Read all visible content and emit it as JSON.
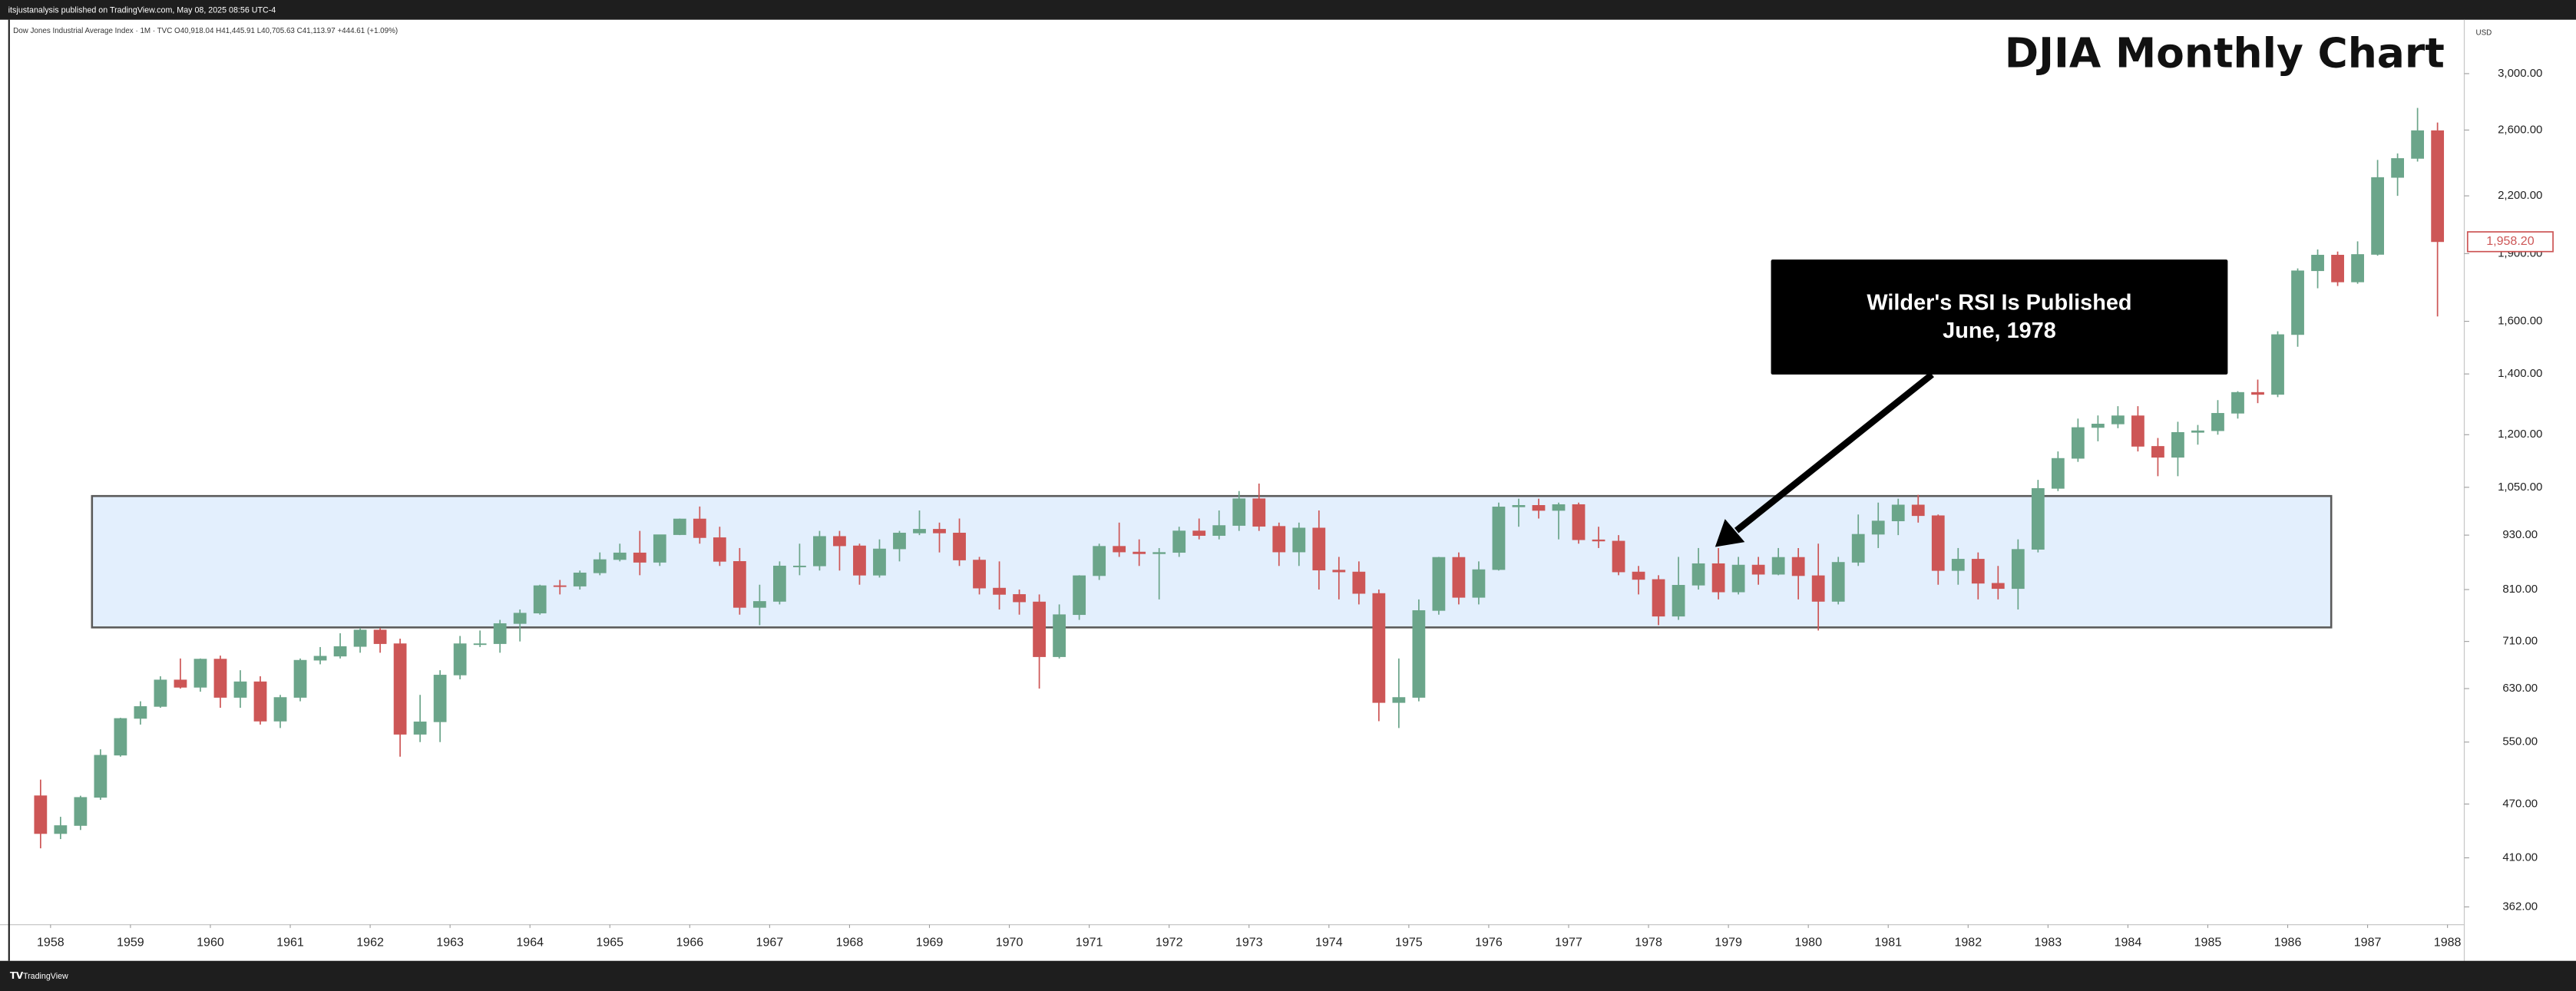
{
  "header": {
    "publisher": "itsjustanalysis published on TradingView.com, May 08, 2025 08:56 UTC-4",
    "symbol_info": "Dow Jones Industrial Average Index · 1M · TVC  O40,918.04  H41,445.91  L40,705.63  C41,113.97  +444.61 (+1.09%)"
  },
  "footer": {
    "brand": "TradingView"
  },
  "chart_data": {
    "type": "candlestick",
    "title": "DJIA Monthly Chart",
    "currency": "USD",
    "annotation": [
      "Wilder's RSI Is Published",
      "June, 1978"
    ],
    "log_scale": true,
    "grid": false,
    "up_color": "#6ba58a",
    "down_color": "#cd5656",
    "last_price": {
      "value": 1958.2,
      "label": "1,958.20"
    },
    "xlim": [
      1957.47,
      1988.21
    ],
    "xticks": [
      1958,
      1959,
      1960,
      1961,
      1962,
      1963,
      1964,
      1965,
      1966,
      1967,
      1968,
      1969,
      1970,
      1971,
      1972,
      1973,
      1974,
      1975,
      1976,
      1977,
      1978,
      1979,
      1980,
      1981,
      1982,
      1983,
      1984,
      1985,
      1986,
      1987,
      1988
    ],
    "ylim": [
      346,
      3440
    ],
    "yticks": [
      {
        "value": 362,
        "label": "362.00"
      },
      {
        "value": 410,
        "label": "410.00"
      },
      {
        "value": 470,
        "label": "470.00"
      },
      {
        "value": 550,
        "label": "550.00"
      },
      {
        "value": 630,
        "label": "630.00"
      },
      {
        "value": 710,
        "label": "710.00"
      },
      {
        "value": 810,
        "label": "810.00"
      },
      {
        "value": 930,
        "label": "930.00"
      },
      {
        "value": 1050,
        "label": "1,050.00"
      },
      {
        "value": 1200,
        "label": "1,200.00"
      },
      {
        "value": 1400,
        "label": "1,400.00"
      },
      {
        "value": 1600,
        "label": "1,600.00"
      },
      {
        "value": 1900,
        "label": "1,900.00"
      },
      {
        "value": 2200,
        "label": "2,200.00"
      },
      {
        "value": 2600,
        "label": "2,600.00"
      },
      {
        "value": 3000,
        "label": "3,000.00"
      }
    ],
    "x": [
      1957.75,
      1958,
      1958.25,
      1958.5,
      1958.75,
      1959,
      1959.25,
      1959.5,
      1959.75,
      1960,
      1960.25,
      1960.5,
      1960.75,
      1961,
      1961.25,
      1961.5,
      1961.75,
      1962,
      1962.25,
      1962.5,
      1962.75,
      1963,
      1963.25,
      1963.5,
      1963.75,
      1964,
      1964.25,
      1964.5,
      1964.75,
      1965,
      1965.25,
      1965.5,
      1965.75,
      1966,
      1966.25,
      1966.5,
      1966.75,
      1967,
      1967.25,
      1967.5,
      1967.75,
      1968,
      1968.25,
      1968.5,
      1968.75,
      1969,
      1969.25,
      1969.5,
      1969.75,
      1970,
      1970.25,
      1970.5,
      1970.75,
      1971,
      1971.25,
      1971.5,
      1971.75,
      1972,
      1972.25,
      1972.5,
      1972.75,
      1973,
      1973.25,
      1973.5,
      1973.75,
      1974,
      1974.25,
      1974.5,
      1974.75,
      1975,
      1975.25,
      1975.5,
      1975.75,
      1976,
      1976.25,
      1976.5,
      1976.75,
      1977,
      1977.25,
      1977.5,
      1977.75,
      1978,
      1978.25,
      1978.5,
      1978.75,
      1979,
      1979.25,
      1979.5,
      1979.75,
      1980,
      1980.25,
      1980.5,
      1980.75,
      1981,
      1981.25,
      1981.5,
      1981.75,
      1982,
      1982.25,
      1982.5,
      1982.75,
      1983,
      1983.25,
      1983.5,
      1983.75,
      1984,
      1984.25,
      1984.5,
      1984.75,
      1985,
      1985.25,
      1985.5,
      1985.75,
      1986,
      1986.25,
      1986.5,
      1986.75,
      1987,
      1987.25,
      1987.5,
      1987.75
    ],
    "open": [
      480,
      436,
      445,
      478,
      532,
      584,
      602,
      644,
      632,
      679,
      616,
      641,
      580,
      616,
      677,
      684,
      701,
      731,
      706,
      561,
      579,
      652,
      706,
      706,
      743,
      763,
      818,
      817,
      845,
      874,
      889,
      868,
      931,
      969,
      924,
      870,
      774,
      786,
      860,
      860,
      927,
      905,
      840,
      898,
      935,
      944,
      935,
      873,
      813,
      800,
      785,
      683,
      760,
      839,
      904,
      891,
      887,
      890,
      940,
      929,
      953,
      1020,
      951,
      891,
      947,
      851,
      847,
      802,
      608,
      616,
      768,
      879,
      794,
      852,
      999,
      1003,
      990,
      1005,
      919,
      916,
      847,
      831,
      757,
      819,
      865,
      805,
      862,
      842,
      879,
      839,
      786,
      868,
      932,
      964,
      1004,
      977,
      850,
      875,
      823,
      812,
      897,
      1047,
      1130,
      1222,
      1233,
      1259,
      1165,
      1133,
      1207,
      1212,
      1267,
      1336,
      1329,
      1547,
      1819,
      1893,
      1768,
      1896,
      2305,
      2419,
      2596
    ],
    "high": [
      500,
      455,
      480,
      540,
      585,
      610,
      650,
      680,
      680,
      685,
      660,
      650,
      620,
      680,
      700,
      725,
      735,
      735,
      715,
      620,
      660,
      720,
      730,
      750,
      770,
      820,
      830,
      850,
      890,
      910,
      940,
      930,
      970,
      1000,
      950,
      900,
      820,
      870,
      910,
      940,
      940,
      910,
      920,
      940,
      990,
      960,
      970,
      880,
      870,
      810,
      800,
      780,
      840,
      910,
      960,
      920,
      900,
      950,
      970,
      990,
      1040,
      1060,
      960,
      960,
      990,
      880,
      870,
      810,
      680,
      790,
      880,
      890,
      870,
      1010,
      1020,
      1020,
      1010,
      1010,
      950,
      930,
      860,
      840,
      880,
      900,
      900,
      880,
      880,
      900,
      900,
      910,
      880,
      980,
      1010,
      1020,
      1030,
      980,
      900,
      890,
      860,
      920,
      1070,
      1150,
      1250,
      1260,
      1290,
      1290,
      1190,
      1240,
      1230,
      1310,
      1340,
      1380,
      1560,
      1830,
      1920,
      1910,
      1960,
      2410,
      2450,
      2750,
      2650
    ],
    "low": [
      420,
      430,
      440,
      475,
      530,
      575,
      600,
      630,
      625,
      600,
      600,
      575,
      570,
      610,
      670,
      680,
      690,
      690,
      530,
      550,
      550,
      645,
      700,
      690,
      710,
      760,
      800,
      810,
      840,
      870,
      840,
      860,
      930,
      910,
      860,
      760,
      740,
      780,
      840,
      850,
      850,
      820,
      835,
      870,
      930,
      890,
      860,
      800,
      770,
      760,
      630,
      680,
      750,
      830,
      880,
      860,
      790,
      880,
      920,
      920,
      940,
      940,
      860,
      860,
      810,
      790,
      780,
      580,
      570,
      610,
      760,
      780,
      780,
      850,
      950,
      970,
      920,
      910,
      900,
      840,
      800,
      740,
      750,
      810,
      790,
      800,
      820,
      840,
      790,
      730,
      780,
      860,
      900,
      930,
      960,
      820,
      820,
      790,
      790,
      770,
      890,
      1040,
      1120,
      1180,
      1220,
      1150,
      1080,
      1080,
      1170,
      1200,
      1250,
      1300,
      1320,
      1500,
      1740,
      1750,
      1760,
      1890,
      2200,
      2400,
      1620
    ],
    "close": [
      436,
      445,
      478,
      532,
      584,
      602,
      644,
      632,
      679,
      616,
      641,
      580,
      616,
      677,
      684,
      701,
      731,
      706,
      561,
      579,
      652,
      706,
      706,
      743,
      763,
      818,
      817,
      845,
      874,
      889,
      868,
      931,
      969,
      924,
      870,
      774,
      786,
      860,
      860,
      927,
      905,
      840,
      898,
      935,
      944,
      935,
      873,
      813,
      800,
      785,
      683,
      760,
      839,
      904,
      891,
      887,
      890,
      940,
      929,
      953,
      1020,
      951,
      891,
      947,
      851,
      847,
      802,
      608,
      616,
      768,
      879,
      794,
      852,
      999,
      1003,
      990,
      1005,
      919,
      916,
      847,
      831,
      757,
      819,
      865,
      805,
      862,
      842,
      879,
      839,
      786,
      868,
      932,
      964,
      1004,
      977,
      850,
      875,
      823,
      812,
      897,
      1047,
      1130,
      1222,
      1233,
      1259,
      1165,
      1133,
      1207,
      1212,
      1267,
      1336,
      1329,
      1547,
      1819,
      1893,
      1768,
      1896,
      2305,
      2419,
      2596,
      1958.2
    ]
  }
}
